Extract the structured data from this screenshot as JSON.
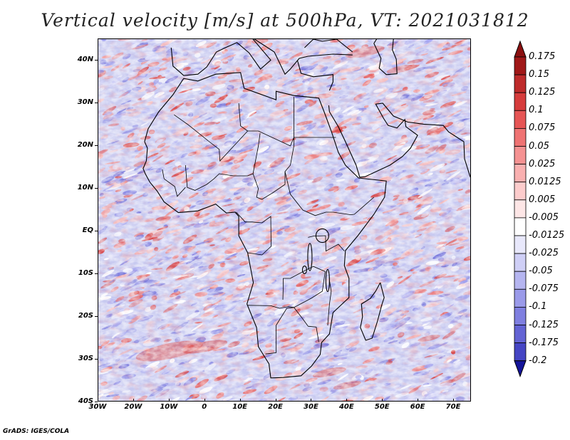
{
  "title": "Vertical velocity [m/s] at 500hPa, VT: 2021031812",
  "footer": "GrADS: IGES/COLA",
  "map": {
    "variable": "Vertical velocity",
    "units": "m/s",
    "level": "500hPa",
    "valid_time": "2021031812",
    "lat_range": [
      -40,
      45
    ],
    "lon_range": [
      -30,
      75
    ],
    "lat_labels": [
      {
        "lat": 40,
        "label": "40N"
      },
      {
        "lat": 30,
        "label": "30N"
      },
      {
        "lat": 20,
        "label": "20N"
      },
      {
        "lat": 10,
        "label": "10N"
      },
      {
        "lat": 0,
        "label": "EQ"
      },
      {
        "lat": -10,
        "label": "10S"
      },
      {
        "lat": -20,
        "label": "20S"
      },
      {
        "lat": -30,
        "label": "30S"
      },
      {
        "lat": -40,
        "label": "40S"
      }
    ],
    "lon_labels": [
      {
        "lon": -30,
        "label": "30W"
      },
      {
        "lon": -20,
        "label": "20W"
      },
      {
        "lon": -10,
        "label": "10W"
      },
      {
        "lon": 0,
        "label": "0"
      },
      {
        "lon": 10,
        "label": "10E"
      },
      {
        "lon": 20,
        "label": "20E"
      },
      {
        "lon": 30,
        "label": "30E"
      },
      {
        "lon": 40,
        "label": "40E"
      },
      {
        "lon": 50,
        "label": "50E"
      },
      {
        "lon": 60,
        "label": "60E"
      },
      {
        "lon": 70,
        "label": "70E"
      }
    ]
  },
  "colorbar": {
    "levels": [
      {
        "label": "0.175",
        "color": "#a01818"
      },
      {
        "label": "0.15",
        "color": "#be2b2b"
      },
      {
        "label": "0.125",
        "color": "#d63c3c"
      },
      {
        "label": "0.1",
        "color": "#e65555"
      },
      {
        "label": "0.075",
        "color": "#ef7373"
      },
      {
        "label": "0.05",
        "color": "#f59292"
      },
      {
        "label": "0.025",
        "color": "#f9b0b0"
      },
      {
        "label": "0.0125",
        "color": "#fccccc"
      },
      {
        "label": "0.005",
        "color": "#fde6e6"
      },
      {
        "label": "-0.005",
        "color": "#ffffff"
      },
      {
        "label": "-0.0125",
        "color": "#e8e8fb"
      },
      {
        "label": "-0.025",
        "color": "#cfcff6"
      },
      {
        "label": "-0.05",
        "color": "#b5b5f0"
      },
      {
        "label": "-0.075",
        "color": "#9a9ae9"
      },
      {
        "label": "-0.1",
        "color": "#7f7fe0"
      },
      {
        "label": "-0.125",
        "color": "#6363d4"
      },
      {
        "label": "-0.175",
        "color": "#4545c4"
      },
      {
        "label": "-0.2",
        "color": "#2a2ab0"
      }
    ],
    "top_color": "#8b1010",
    "bottom_color": "#14149a"
  },
  "palette": {
    "ocean_base": "#c7c9f0",
    "land_base": "#b0b0ea",
    "red": "#e06060",
    "blue": "#6a6ad8",
    "outline": "#000000"
  }
}
